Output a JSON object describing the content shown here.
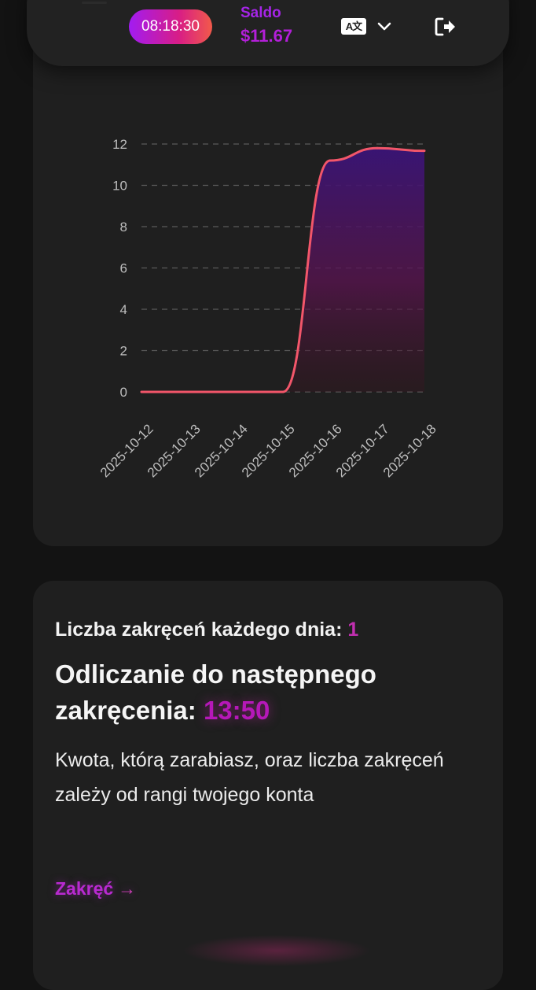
{
  "header": {
    "timer": "08:18:30",
    "saldo_label": "Saldo",
    "saldo_value": "$11.67",
    "lang_icon_text": "A文",
    "icons": [
      "menu-icon",
      "language-icon",
      "chevron-down-icon",
      "logout-icon"
    ]
  },
  "colors": {
    "accent_purple": "#a624e8",
    "accent_pink": "#d81d86",
    "line_red": "#f2566a",
    "card_bg": "#1f1f1f",
    "page_bg": "#131313"
  },
  "chart_data": {
    "type": "area",
    "x": [
      "2025-10-12",
      "2025-10-13",
      "2025-10-14",
      "2025-10-15",
      "2025-10-16",
      "2025-10-17",
      "2025-10-18"
    ],
    "values": [
      0,
      0,
      0,
      0,
      11.2,
      11.8,
      11.67
    ],
    "yticks": [
      0,
      2,
      4,
      6,
      8,
      10,
      12
    ],
    "ylim": [
      0,
      12
    ],
    "grid": true,
    "title": "",
    "xlabel": "",
    "ylabel": ""
  },
  "info": {
    "spins_label": "Liczba zakręceń każdego dnia:",
    "spins_value": "1",
    "countdown_label": "Odliczanie do następnego zakręcenia:",
    "countdown_value": "13:50",
    "description": "Kwota, którą zarabiasz, oraz liczba zakręceń zależy od rangi twojego konta",
    "spin_button": "Zakręć",
    "spin_arrow": "→"
  }
}
